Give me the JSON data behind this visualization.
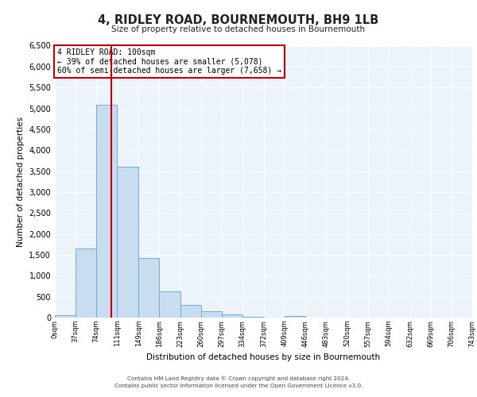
{
  "title": "4, RIDLEY ROAD, BOURNEMOUTH, BH9 1LB",
  "subtitle": "Size of property relative to detached houses in Bournemouth",
  "xlabel": "Distribution of detached houses by size in Bournemouth",
  "ylabel": "Number of detached properties",
  "bar_color": "#c9ddf0",
  "bar_edge_color": "#6aaed6",
  "background_color": "#edf3fa",
  "grid_color": "#ffffff",
  "vline_x": 100,
  "vline_color": "#cc0000",
  "annotation_title": "4 RIDLEY ROAD: 100sqm",
  "annotation_line1": "← 39% of detached houses are smaller (5,078)",
  "annotation_line2": "60% of semi-detached houses are larger (7,658) →",
  "bin_edges": [
    0,
    37,
    74,
    111,
    149,
    186,
    223,
    260,
    297,
    334,
    372,
    409,
    446,
    483,
    520,
    557,
    594,
    632,
    669,
    706,
    743
  ],
  "bar_heights": [
    50,
    1650,
    5080,
    3600,
    1420,
    620,
    300,
    145,
    75,
    10,
    0,
    30,
    0,
    0,
    0,
    0,
    0,
    0,
    0,
    0
  ],
  "ylim": [
    0,
    6500
  ],
  "yticks": [
    0,
    500,
    1000,
    1500,
    2000,
    2500,
    3000,
    3500,
    4000,
    4500,
    5000,
    5500,
    6000,
    6500
  ],
  "footer_line1": "Contains HM Land Registry data © Crown copyright and database right 2024.",
  "footer_line2": "Contains public sector information licensed under the Open Government Licence v3.0."
}
